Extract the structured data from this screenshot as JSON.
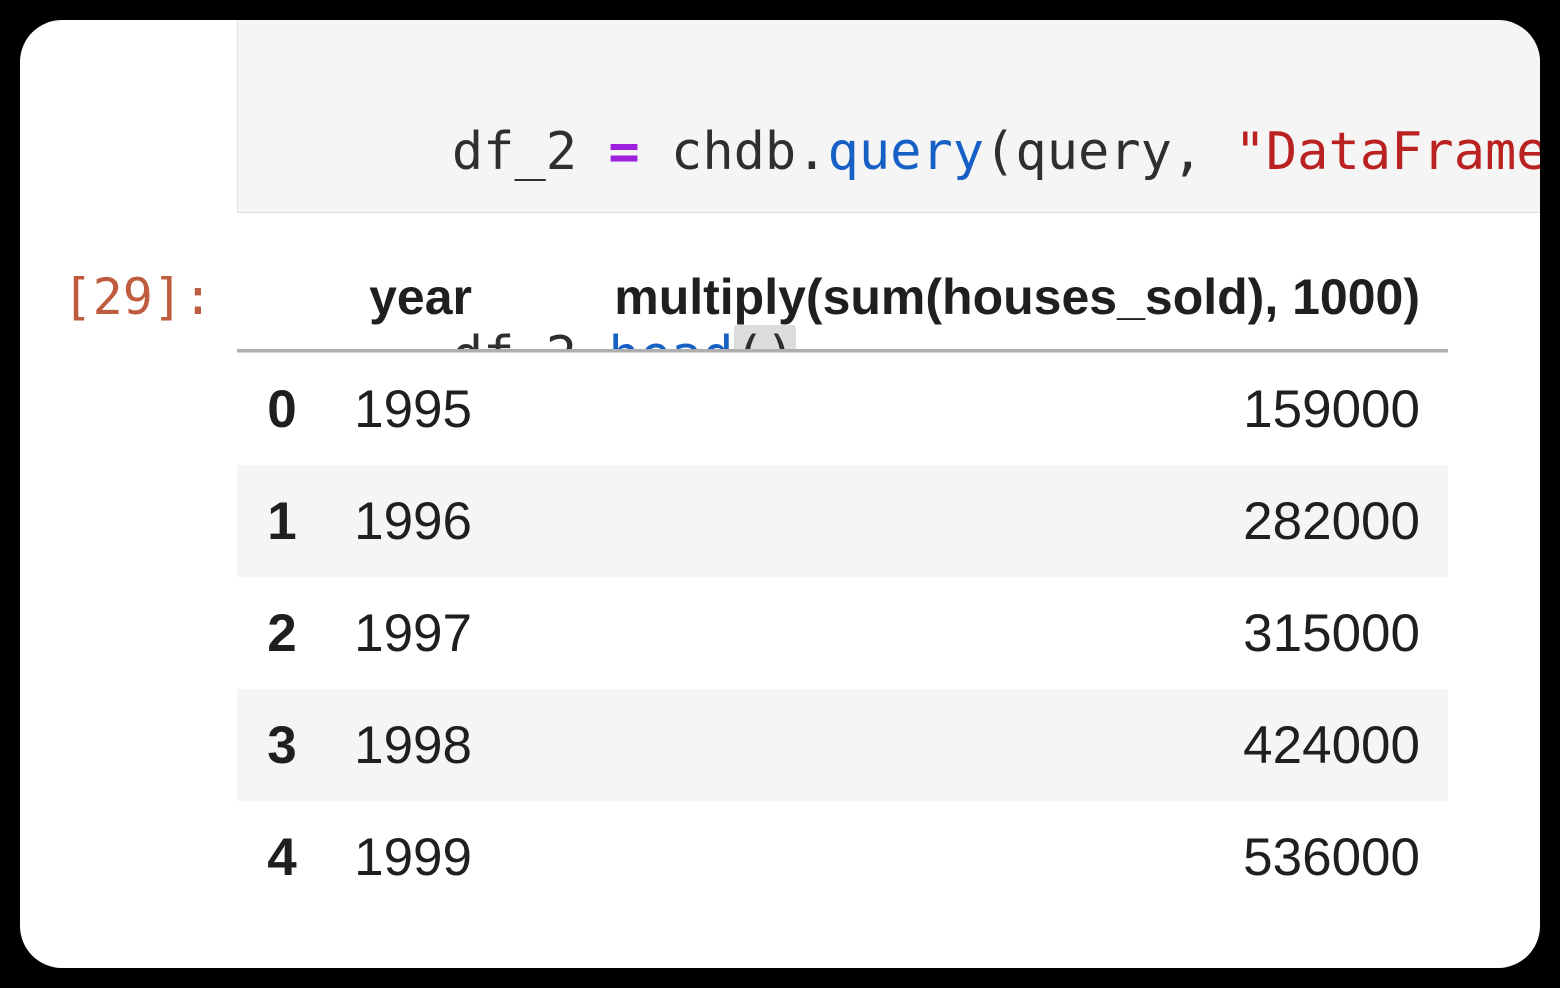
{
  "code_cell": {
    "line1": {
      "lhs": "df_2 ",
      "operator": "=",
      "mid1": " chdb.",
      "function": "query",
      "mid2": "(query, ",
      "string": "\"DataFrame\"",
      "close": ")"
    },
    "line2": {
      "lhs": "df_2.",
      "function": "head",
      "brackets": "()"
    }
  },
  "output": {
    "prompt": "[29]:",
    "table": {
      "headers": {
        "index": "",
        "year": "year",
        "value": "multiply(sum(houses_sold), 1000)"
      },
      "rows": [
        {
          "index": "0",
          "year": "1995",
          "value": "159000"
        },
        {
          "index": "1",
          "year": "1996",
          "value": "282000"
        },
        {
          "index": "2",
          "year": "1997",
          "value": "315000"
        },
        {
          "index": "3",
          "year": "1998",
          "value": "424000"
        },
        {
          "index": "4",
          "year": "1999",
          "value": "536000"
        }
      ]
    }
  },
  "colors": {
    "canvas_bg": "#000000",
    "page_bg": "#ffffff",
    "code_cell_bg": "#f5f5f5",
    "code_text": "#2f2f2f",
    "operator_purple": "#9d20dd",
    "function_blue": "#1660c5",
    "string_red": "#ba2121",
    "bracket_highlight_bg": "#dcdcdc",
    "output_prompt_orange": "#bf5b3e",
    "table_text": "#1f1f1f",
    "row_stripe_bg": "#f5f5f5",
    "header_rule_gray": "#aeaeae"
  }
}
